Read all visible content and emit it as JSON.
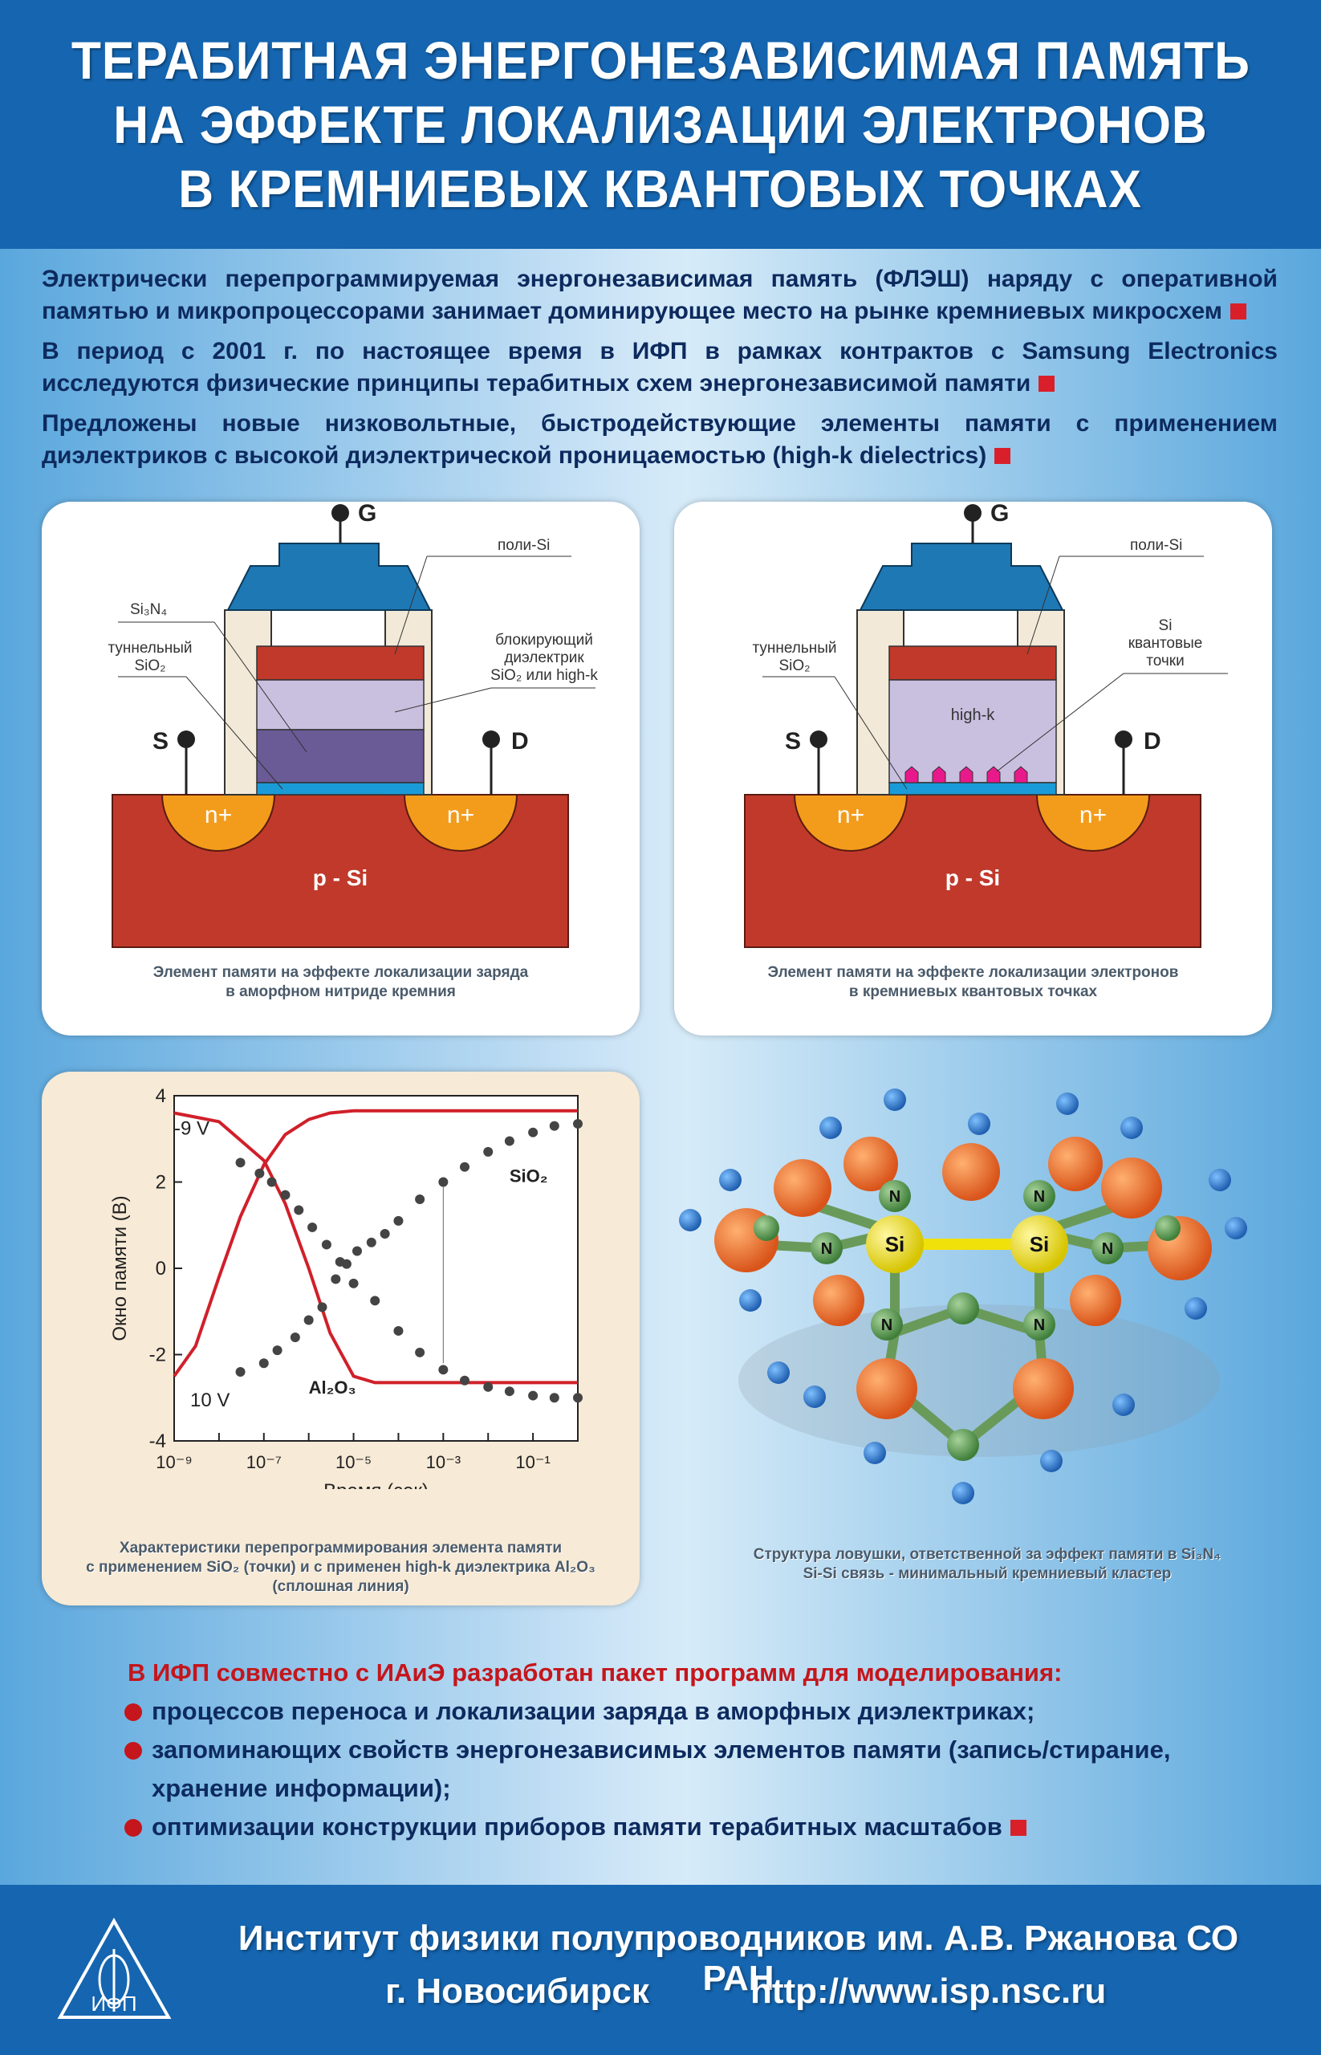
{
  "header": {
    "title_lines": [
      "ТЕРАБИТНАЯ ЭНЕРГОНЕЗАВИСИМАЯ ПАМЯТЬ",
      "НА ЭФФЕКТЕ ЛОКАЛИЗАЦИИ ЭЛЕКТРОНОВ",
      "В КРЕМНИЕВЫХ КВАНТОВЫХ ТОЧКАХ"
    ]
  },
  "intro": [
    "Электрически перепрограммируемая энергонезависимая память (ФЛЭШ) наряду с оперативной памятью и микропроцессорами занимает доминирующее место на рынке кремниевых микросхем",
    "В период с 2001 г. по настоящее время в ИФП в рамках контрактов с Samsung Electronics исследуются физические принципы терабитных схем энергонезависимой памяти",
    "Предложены новые низковольтные, быстродействующие элементы памяти с применением диэлектриков с высокой диэлектрической проницаемостью (high-k dielectrics)"
  ],
  "diagram1": {
    "gate": "G",
    "source": "S",
    "drain": "D",
    "poly": "поли-Si",
    "nitride": "Si₃N₄",
    "tunnel": [
      "туннельный",
      "SiO₂"
    ],
    "blocking": [
      "блокирующий",
      "диэлектрик",
      "SiO₂ или high-k"
    ],
    "n1": "n+",
    "n2": "n+",
    "substrate": "p - Si",
    "caption": [
      "Элемент памяти на эффекте локализации заряда",
      "в аморфном нитриде кремния"
    ]
  },
  "diagram2": {
    "gate": "G",
    "source": "S",
    "drain": "D",
    "poly": "поли-Si",
    "tunnel": [
      "туннельный",
      "SiO₂"
    ],
    "dots": [
      "Si",
      "квантовые",
      "точки"
    ],
    "highk": "high-k",
    "n1": "n+",
    "n2": "n+",
    "substrate": "p - Si",
    "caption": [
      "Элемент памяти на эффекте локализации электронов",
      "в кремниевых квантовых точках"
    ]
  },
  "chart_data": {
    "type": "scatter",
    "xlabel": "Время (сек)",
    "ylabel": "Окно памяти (В)",
    "x_scale": "log",
    "xlim": [
      1e-09,
      1
    ],
    "ylim": [
      -4,
      4
    ],
    "x_ticks": [
      "10⁻⁹",
      "10⁻⁷",
      "10⁻⁵",
      "10⁻³",
      "10⁻¹"
    ],
    "y_ticks": [
      "-4",
      "-2",
      "0",
      "2",
      "4"
    ],
    "annotations": [
      "-9 V",
      "10 V",
      "SiO₂",
      "Al₂O₃"
    ],
    "series": [
      {
        "name": "SiO₂",
        "style": "points",
        "x": [
          3e-08,
          8e-08,
          1.5e-07,
          3e-07,
          6e-07,
          1.2e-06,
          2.5e-06,
          5e-06,
          1e-05,
          3e-05,
          0.0001,
          0.0003,
          0.001,
          0.003,
          0.01,
          0.03,
          0.1,
          0.3,
          1
        ],
        "y": [
          2.45,
          2.2,
          2.0,
          1.7,
          1.35,
          0.95,
          0.55,
          0.15,
          -0.35,
          -0.75,
          -1.45,
          -1.95,
          -2.35,
          -2.6,
          -2.75,
          -2.85,
          -2.95,
          -3.0,
          -3.0
        ]
      },
      {
        "name": "SiO₂",
        "style": "points",
        "x": [
          3e-08,
          1e-07,
          2e-07,
          5e-07,
          1e-06,
          2e-06,
          4e-06,
          7e-06,
          1.2e-05,
          2.5e-05,
          5e-05,
          0.0001,
          0.0003,
          0.001,
          0.003,
          0.01,
          0.03,
          0.1,
          0.3,
          1
        ],
        "y": [
          -2.4,
          -2.2,
          -1.9,
          -1.6,
          -1.2,
          -0.9,
          -0.25,
          0.1,
          0.4,
          0.6,
          0.8,
          1.1,
          1.6,
          2.0,
          2.35,
          2.7,
          2.95,
          3.15,
          3.3,
          3.35
        ]
      },
      {
        "name": "Al₂O₃",
        "style": "line",
        "x": [
          1e-09,
          1e-08,
          1e-07,
          3e-07,
          1e-06,
          3e-06,
          1e-05,
          3e-05,
          0.0001,
          0.001,
          1
        ],
        "y": [
          3.6,
          3.4,
          2.5,
          1.5,
          0.0,
          -1.5,
          -2.5,
          -2.65,
          -2.65,
          -2.65,
          -2.65
        ]
      },
      {
        "name": "Al₂O₃",
        "style": "line",
        "x": [
          1e-09,
          3e-09,
          1e-08,
          3e-08,
          1e-07,
          3e-07,
          1e-06,
          3e-06,
          1e-05,
          0.0001,
          0.001,
          1
        ],
        "y": [
          -2.5,
          -1.8,
          -0.2,
          1.2,
          2.4,
          3.1,
          3.45,
          3.6,
          3.65,
          3.65,
          3.65,
          3.65
        ]
      }
    ],
    "caption": [
      "Характеристики перепрограммирования элемента памяти",
      "с применением SiO₂ (точки) и с применен high-k диэлектрика Al₂O₃",
      "(сплошная линия)"
    ]
  },
  "molecule": {
    "n_label": "N",
    "si_label": "Si",
    "caption": [
      "Структура ловушки, ответственной за эффект памяти в Si₃N₄",
      "Si-Si связь - минимальный кремниевый кластер"
    ]
  },
  "bottom": {
    "heading": "В ИФП совместно с ИАиЭ разработан пакет программ для моделирования:",
    "items": [
      "процессов переноса и локализации заряда в аморфных диэлектриках;",
      "запоминающих свойств энергонезависимых элементов памяти (запись/стирание,",
      "хранение информации);",
      "оптимизации конструкции приборов памяти терабитных масштабов"
    ]
  },
  "footer": {
    "institute": "Институт физики полупроводников им. А.В. Ржанова СО РАН",
    "city": "г. Новосибирск",
    "url": "http://www.isp.nsc.ru",
    "logo_text": "ИФП"
  }
}
